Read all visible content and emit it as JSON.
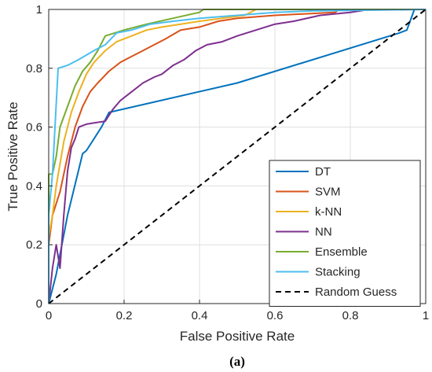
{
  "chart_data": {
    "type": "line",
    "xlabel": "False Positive Rate",
    "ylabel": "True Positive Rate",
    "caption": "(a)",
    "xlim": [
      0,
      1
    ],
    "ylim": [
      0,
      1
    ],
    "xticks": [
      "0",
      "0.2",
      "0.4",
      "0.6",
      "0.8",
      "1"
    ],
    "yticks": [
      "0",
      "0.2",
      "0.4",
      "0.6",
      "0.8",
      "1"
    ],
    "grid": true,
    "legend_position": "bottom-right",
    "series": [
      {
        "name": "DT",
        "color": "#0072BD",
        "dash": false,
        "points": [
          [
            0,
            0
          ],
          [
            0.02,
            0.1
          ],
          [
            0.05,
            0.3
          ],
          [
            0.09,
            0.51
          ],
          [
            0.1,
            0.52
          ],
          [
            0.12,
            0.56
          ],
          [
            0.14,
            0.6
          ],
          [
            0.16,
            0.65
          ],
          [
            0.5,
            0.75
          ],
          [
            0.93,
            0.92
          ],
          [
            0.95,
            0.93
          ],
          [
            0.97,
            1
          ],
          [
            1,
            1
          ]
        ]
      },
      {
        "name": "SVM",
        "color": "#D95319",
        "dash": false,
        "points": [
          [
            0,
            0
          ],
          [
            0,
            0.2
          ],
          [
            0.01,
            0.3
          ],
          [
            0.03,
            0.38
          ],
          [
            0.05,
            0.5
          ],
          [
            0.07,
            0.6
          ],
          [
            0.09,
            0.67
          ],
          [
            0.11,
            0.72
          ],
          [
            0.13,
            0.75
          ],
          [
            0.16,
            0.79
          ],
          [
            0.19,
            0.82
          ],
          [
            0.22,
            0.84
          ],
          [
            0.25,
            0.86
          ],
          [
            0.28,
            0.88
          ],
          [
            0.31,
            0.9
          ],
          [
            0.35,
            0.93
          ],
          [
            0.4,
            0.94
          ],
          [
            0.45,
            0.96
          ],
          [
            0.5,
            0.97
          ],
          [
            0.6,
            0.98
          ],
          [
            0.76,
            0.99
          ],
          [
            0.77,
            1
          ],
          [
            1,
            1
          ]
        ]
      },
      {
        "name": "k-NN",
        "color": "#EDB120",
        "dash": false,
        "points": [
          [
            0,
            0
          ],
          [
            0,
            0.23
          ],
          [
            0.01,
            0.3
          ],
          [
            0.02,
            0.4
          ],
          [
            0.04,
            0.55
          ],
          [
            0.06,
            0.65
          ],
          [
            0.08,
            0.72
          ],
          [
            0.1,
            0.78
          ],
          [
            0.12,
            0.82
          ],
          [
            0.15,
            0.86
          ],
          [
            0.18,
            0.89
          ],
          [
            0.22,
            0.91
          ],
          [
            0.26,
            0.93
          ],
          [
            0.3,
            0.94
          ],
          [
            0.35,
            0.95
          ],
          [
            0.4,
            0.96
          ],
          [
            0.46,
            0.97
          ],
          [
            0.52,
            0.98
          ],
          [
            0.55,
            1
          ],
          [
            1,
            1
          ]
        ]
      },
      {
        "name": "NN",
        "color": "#7E2F8E",
        "dash": false,
        "points": [
          [
            0,
            0
          ],
          [
            0.01,
            0.12
          ],
          [
            0.02,
            0.2
          ],
          [
            0.03,
            0.12
          ],
          [
            0.04,
            0.3
          ],
          [
            0.05,
            0.45
          ],
          [
            0.06,
            0.53
          ],
          [
            0.07,
            0.56
          ],
          [
            0.08,
            0.6
          ],
          [
            0.1,
            0.61
          ],
          [
            0.15,
            0.62
          ],
          [
            0.17,
            0.66
          ],
          [
            0.19,
            0.69
          ],
          [
            0.22,
            0.72
          ],
          [
            0.25,
            0.75
          ],
          [
            0.28,
            0.77
          ],
          [
            0.3,
            0.78
          ],
          [
            0.33,
            0.81
          ],
          [
            0.36,
            0.83
          ],
          [
            0.39,
            0.86
          ],
          [
            0.42,
            0.88
          ],
          [
            0.46,
            0.89
          ],
          [
            0.5,
            0.91
          ],
          [
            0.55,
            0.93
          ],
          [
            0.6,
            0.95
          ],
          [
            0.65,
            0.96
          ],
          [
            0.72,
            0.98
          ],
          [
            0.8,
            0.99
          ],
          [
            0.85,
            1
          ],
          [
            1,
            1
          ]
        ]
      },
      {
        "name": "Ensemble",
        "color": "#77AC30",
        "dash": false,
        "points": [
          [
            0,
            0
          ],
          [
            0,
            0.44
          ],
          [
            0.01,
            0.44
          ],
          [
            0.02,
            0.5
          ],
          [
            0.03,
            0.6
          ],
          [
            0.05,
            0.67
          ],
          [
            0.07,
            0.74
          ],
          [
            0.09,
            0.79
          ],
          [
            0.11,
            0.82
          ],
          [
            0.13,
            0.86
          ],
          [
            0.15,
            0.91
          ],
          [
            0.2,
            0.93
          ],
          [
            0.26,
            0.95
          ],
          [
            0.33,
            0.97
          ],
          [
            0.4,
            0.99
          ],
          [
            0.41,
            1
          ],
          [
            1,
            1
          ]
        ]
      },
      {
        "name": "Stacking",
        "color": "#4DBEEE",
        "dash": false,
        "points": [
          [
            0,
            0
          ],
          [
            0,
            0.3
          ],
          [
            0.01,
            0.44
          ],
          [
            0.02,
            0.68
          ],
          [
            0.025,
            0.8
          ],
          [
            0.05,
            0.81
          ],
          [
            0.08,
            0.83
          ],
          [
            0.12,
            0.86
          ],
          [
            0.15,
            0.88
          ],
          [
            0.18,
            0.92
          ],
          [
            0.22,
            0.93
          ],
          [
            0.27,
            0.95
          ],
          [
            0.33,
            0.96
          ],
          [
            0.4,
            0.97
          ],
          [
            0.5,
            0.98
          ],
          [
            0.6,
            0.99
          ],
          [
            0.7,
            0.995
          ],
          [
            1,
            1
          ]
        ]
      },
      {
        "name": "Random Guess",
        "color": "#000000",
        "dash": true,
        "points": [
          [
            0,
            0
          ],
          [
            1,
            1
          ]
        ]
      }
    ]
  }
}
